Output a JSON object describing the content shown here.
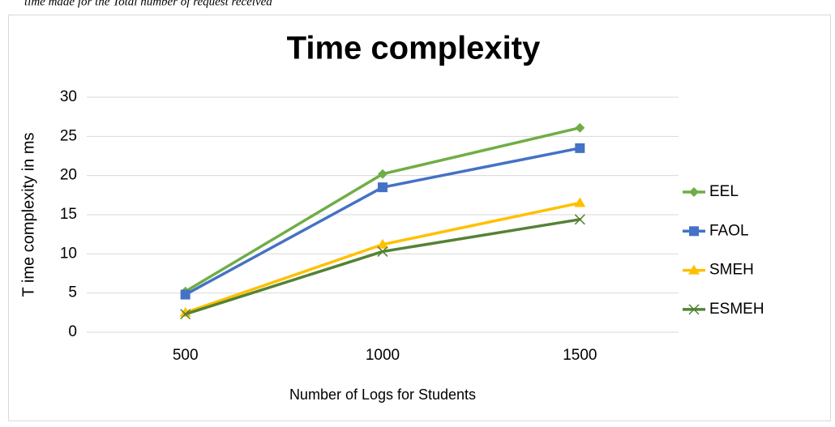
{
  "caption": "time made for the Total number of request received",
  "chart_data": {
    "type": "line",
    "title": "Time complexity",
    "xlabel": "Number of Logs for Students",
    "ylabel": "T ime complexity in ms",
    "categories": [
      "500",
      "1000",
      "1500"
    ],
    "series": [
      {
        "name": "EEL",
        "color": "#70ad47",
        "marker": "diamond",
        "values": [
          5.2,
          20.2,
          26.1
        ]
      },
      {
        "name": "FAOL",
        "color": "#4472c4",
        "marker": "square",
        "values": [
          4.8,
          18.5,
          23.5
        ]
      },
      {
        "name": "SMEH",
        "color": "#ffc000",
        "marker": "triangle",
        "values": [
          2.5,
          11.2,
          16.5
        ]
      },
      {
        "name": "ESMEH",
        "color": "#548235",
        "marker": "x",
        "values": [
          2.3,
          10.3,
          14.4
        ]
      }
    ],
    "ylim": [
      0,
      30
    ],
    "yticks": [
      0,
      5,
      10,
      15,
      20,
      25,
      30
    ],
    "grid": true,
    "legend": "right"
  }
}
